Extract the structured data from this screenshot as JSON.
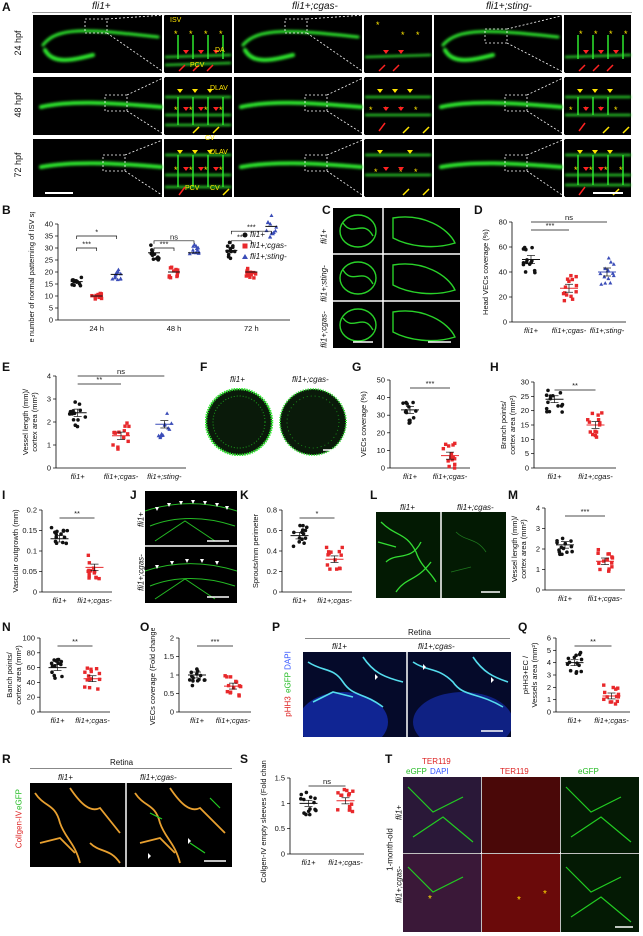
{
  "panel_letters": [
    "A",
    "B",
    "C",
    "D",
    "E",
    "F",
    "G",
    "H",
    "I",
    "J",
    "K",
    "L",
    "M",
    "N",
    "O",
    "P",
    "Q",
    "R",
    "S",
    "T"
  ],
  "panelA": {
    "columns": [
      "fli1+",
      "fli1+;cgas-",
      "fli1+;sting-"
    ],
    "rows": [
      "24 hpf",
      "48 hpf",
      "72 hpf"
    ],
    "inset_labels": {
      "isv": "ISV",
      "da": "DA",
      "pcv": "PCV",
      "dlav": "DLAV",
      "cv": "CV"
    }
  },
  "panelC": {
    "rows": [
      "fli1+",
      "fli1+;sting-",
      "fli1+;cgas-"
    ]
  },
  "panelF": {
    "labels": [
      "fli1+",
      "fli1+;cgas-"
    ]
  },
  "panelJ": {
    "rows": [
      "fli1+",
      "fli1+;cgas-"
    ]
  },
  "panelL": {
    "labels": [
      "fli1+",
      "fli1+;cgas-"
    ]
  },
  "panelP": {
    "title": "Retina",
    "labels": [
      "fli1+",
      "fli1+;cgas-"
    ],
    "stain": [
      "pHH3",
      "eGFP",
      "DAPI"
    ]
  },
  "panelR": {
    "title": "Retina",
    "labels": [
      "fli1+",
      "fli1+;cgas-"
    ],
    "stain": [
      "Collgen-IV",
      "eGFP"
    ]
  },
  "panelT": {
    "age": "1-month-old",
    "rows": [
      "fli1+",
      "fli1+;cgas-"
    ],
    "col_labels": [
      "TER119",
      "eGFP",
      "DAPI"
    ]
  },
  "colors": {
    "wt": "#111111",
    "cgas": "#e8282b",
    "sting": "#3b4db8",
    "vessel": "#22dd22",
    "collagen": "#e8a030",
    "ter": "#dd2222"
  },
  "chart_data": [
    {
      "id": "B",
      "type": "scatter",
      "ylabel": "The number of normal patterning of ISV sprouts",
      "ylim": [
        0,
        40
      ],
      "yticks": [
        0,
        5,
        10,
        15,
        20,
        25,
        30,
        35,
        40
      ],
      "categories": [
        "24 h",
        "48 h",
        "72 h"
      ],
      "legend": [
        "fli1+",
        "fli1+;cgas-",
        "fli1+;sting-"
      ],
      "series": [
        {
          "name": "fli1+",
          "values": [
            16,
            28,
            29
          ]
        },
        {
          "name": "fli1+;cgas-",
          "values": [
            10,
            20,
            20
          ]
        },
        {
          "name": "fli1+;sting-",
          "values": [
            19,
            28,
            39
          ]
        }
      ],
      "significance": [
        {
          "text": "***",
          "cat": 0
        },
        {
          "text": "*",
          "cat": 0
        },
        {
          "text": "ns",
          "cat": 1
        },
        {
          "text": "***",
          "cat": 1
        },
        {
          "text": "***",
          "cat": 2
        },
        {
          "text": "***",
          "cat": 2
        }
      ]
    },
    {
      "id": "D",
      "type": "scatter",
      "ylabel": "Head VECs coverage (%)",
      "ylim": [
        0,
        80
      ],
      "yticks": [
        0,
        20,
        40,
        60,
        80
      ],
      "categories": [
        "fli1+",
        "fli1+;cgas-",
        "fli1+;sting-"
      ],
      "values": [
        50,
        27,
        40
      ],
      "significance": [
        "***",
        "ns"
      ]
    },
    {
      "id": "E",
      "type": "scatter",
      "ylabel": "Vessel length (mm)/ cortex area (mm²)",
      "ylim": [
        0,
        4
      ],
      "yticks": [
        0,
        1,
        2,
        3,
        4
      ],
      "categories": [
        "fli1+",
        "fli1+;cgas-",
        "fli1+;sting-"
      ],
      "values": [
        2.4,
        1.4,
        1.9
      ],
      "significance": [
        "**",
        "ns"
      ]
    },
    {
      "id": "G",
      "type": "scatter",
      "ylabel": "VECs coverage (%)",
      "ylim": [
        0,
        50
      ],
      "yticks": [
        0,
        10,
        20,
        30,
        40,
        50
      ],
      "categories": [
        "fli1+",
        "fli1+;cgas-"
      ],
      "values": [
        33,
        7
      ],
      "significance": [
        "***"
      ]
    },
    {
      "id": "H",
      "type": "scatter",
      "ylabel": "Branch points/ cortex area (mm²)",
      "ylim": [
        0,
        30
      ],
      "yticks": [
        0,
        5,
        10,
        15,
        20,
        25,
        30
      ],
      "categories": [
        "fli1+",
        "fli1+;cgas-"
      ],
      "values": [
        24,
        15
      ],
      "significance": [
        "**"
      ]
    },
    {
      "id": "I",
      "type": "scatter",
      "ylabel": "Vascular outgrowth (mm)",
      "ylim": [
        0,
        0.2
      ],
      "yticks": [
        0,
        0.05,
        0.1,
        0.15,
        0.2
      ],
      "categories": [
        "fli1+",
        "fli1+;cgas-"
      ],
      "values": [
        0.13,
        0.06
      ],
      "significance": [
        "**"
      ]
    },
    {
      "id": "K",
      "type": "scatter",
      "ylabel": "Sprouts/mm perimeter",
      "ylim": [
        0,
        0.8
      ],
      "yticks": [
        0,
        0.2,
        0.4,
        0.6,
        0.8
      ],
      "categories": [
        "fli1+",
        "fli1+;cgas-"
      ],
      "values": [
        0.55,
        0.32
      ],
      "significance": [
        "*"
      ]
    },
    {
      "id": "M",
      "type": "scatter",
      "ylabel": "Vessel length (mm)/ cortex area (mm²)",
      "ylim": [
        0,
        4
      ],
      "yticks": [
        0,
        1,
        2,
        3,
        4
      ],
      "categories": [
        "fli1+",
        "fli1+;cgas-"
      ],
      "values": [
        2.2,
        1.4
      ],
      "significance": [
        "***"
      ]
    },
    {
      "id": "N",
      "type": "scatter",
      "ylabel": "Banch points/ cortex area (mm²)",
      "ylim": [
        0,
        100
      ],
      "yticks": [
        0,
        20,
        40,
        60,
        80,
        100
      ],
      "categories": [
        "fli1+",
        "fli1+;cgas-"
      ],
      "values": [
        60,
        45
      ],
      "significance": [
        "**"
      ]
    },
    {
      "id": "O",
      "type": "scatter",
      "ylabel": "VECs coverage (Fold change)",
      "ylim": [
        0,
        2.0
      ],
      "yticks": [
        0,
        0.5,
        1.0,
        1.5,
        2.0
      ],
      "categories": [
        "fli1+",
        "fli1+;cgas-"
      ],
      "values": [
        1.0,
        0.7
      ],
      "significance": [
        "***"
      ]
    },
    {
      "id": "Q",
      "type": "scatter",
      "ylabel": "pHH3+EC / Vessels area (mm²)",
      "ylim": [
        0,
        6
      ],
      "yticks": [
        0,
        1,
        2,
        3,
        4,
        5,
        6
      ],
      "categories": [
        "fli1+",
        "fli1+;cgas-"
      ],
      "values": [
        4.0,
        1.3
      ],
      "significance": [
        "**"
      ]
    },
    {
      "id": "S",
      "type": "scatter",
      "ylabel": "Collgen-IV empty sleeves (Fold change)",
      "ylim": [
        0,
        1.5
      ],
      "yticks": [
        0,
        0.5,
        1.0,
        1.5
      ],
      "categories": [
        "fli1+",
        "fli1+;cgas-"
      ],
      "values": [
        1.0,
        1.05
      ],
      "significance": [
        "ns"
      ]
    }
  ]
}
